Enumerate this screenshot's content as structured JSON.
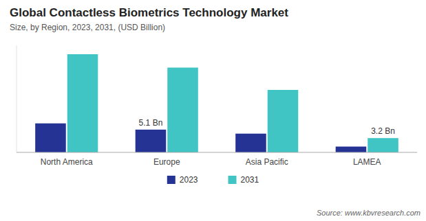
{
  "chart_data": {
    "type": "bar",
    "title": "Global Contactless Biometrics Technology Market",
    "subtitle": "Size, by Region, 2023, 2031, (USD Billion)",
    "categories": [
      "North America",
      "Europe",
      "Asia Pacific",
      "LAMEA"
    ],
    "series": [
      {
        "name": "2023",
        "color": "#253494",
        "values": [
          6.5,
          5.1,
          4.2,
          1.3
        ]
      },
      {
        "name": "2031",
        "color": "#41c4c4",
        "values": [
          22.0,
          19.0,
          14.0,
          3.2
        ]
      }
    ],
    "annotations": [
      {
        "text": "5.1 Bn",
        "category": "Europe",
        "series": "2023",
        "value": 5.1
      },
      {
        "text": "3.2 Bn",
        "category": "LAMEA",
        "series": "2031",
        "value": 3.2
      }
    ],
    "ylim": [
      0,
      24
    ],
    "tick_labels": "x",
    "grid": false,
    "legend": "bottom",
    "source": "Source: www.kbvresearch.com"
  }
}
